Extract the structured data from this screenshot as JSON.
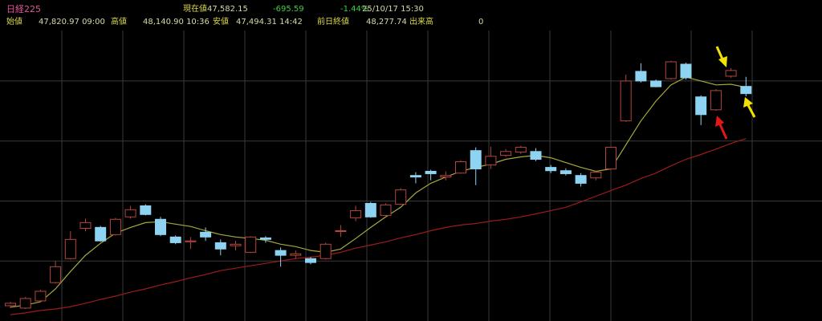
{
  "header": {
    "symbol": "日経225",
    "current_label": "現在値",
    "current": "47,582.15",
    "change": "-695.59",
    "change_pct": "-1.44%",
    "datetime": "25/10/17 15:30",
    "open_label": "始値",
    "open": "47,820.97 09:00",
    "high_label": "高値",
    "high": "48,140.90 10:36",
    "low_label": "安値",
    "low": "47,494.31 14:42",
    "prev_label": "前日終値",
    "prev": "48,277.74",
    "volume_label": "出来高",
    "volume": "0"
  },
  "chart_data": {
    "type": "candlestick",
    "open": [
      40510,
      40430,
      40670,
      41280,
      42080,
      43090,
      43120,
      42880,
      43470,
      43840,
      43390,
      42800,
      42640,
      42960,
      42610,
      42510,
      42290,
      42770,
      42350,
      42190,
      42080,
      42080,
      42990,
      43440,
      43920,
      43520,
      43890,
      44850,
      44990,
      44800,
      44930,
      45680,
      45200,
      45520,
      45630,
      45650,
      45120,
      45010,
      44850,
      44770,
      45070,
      46670,
      48320,
      48000,
      48080,
      48560,
      47470,
      47040,
      48160,
      47820
    ],
    "high": [
      40640,
      40800,
      41040,
      42000,
      42990,
      43410,
      43170,
      43440,
      43840,
      43890,
      43470,
      42850,
      42800,
      43120,
      42720,
      42670,
      42830,
      42830,
      42450,
      42350,
      42130,
      42610,
      43200,
      43840,
      43970,
      43920,
      44430,
      44960,
      45040,
      44990,
      45360,
      45790,
      45810,
      45730,
      45840,
      45760,
      45200,
      45090,
      44930,
      45010,
      45810,
      48210,
      48590,
      48050,
      48670,
      48610,
      47520,
      47730,
      48430,
      48140
    ],
    "low": [
      40430,
      40400,
      40620,
      41250,
      42050,
      42990,
      42640,
      42850,
      43410,
      43520,
      42830,
      42560,
      42400,
      42670,
      42190,
      42350,
      42270,
      42610,
      41810,
      42080,
      41890,
      42050,
      42800,
      43330,
      43440,
      43500,
      43870,
      44590,
      44690,
      44690,
      44910,
      44530,
      45070,
      45470,
      45570,
      45330,
      44930,
      44850,
      44480,
      44690,
      45040,
      46640,
      47950,
      47790,
      48050,
      48050,
      46530,
      47010,
      48110,
      47490
    ],
    "close": [
      40590,
      40750,
      40990,
      41810,
      42720,
      43280,
      42670,
      43390,
      43710,
      43550,
      42880,
      42610,
      42670,
      42800,
      42400,
      42560,
      42800,
      42720,
      42190,
      42240,
      41950,
      42560,
      43010,
      43680,
      43470,
      43870,
      44370,
      44800,
      44910,
      44850,
      45310,
      45070,
      45490,
      45650,
      45790,
      45390,
      45010,
      44910,
      44590,
      44960,
      45790,
      48000,
      48000,
      47810,
      48640,
      48110,
      46880,
      47680,
      48350,
      47580
    ],
    "up_color": "#b5453f",
    "down_color": "#8fd3f2",
    "lines": [
      {
        "color": "#a7a83a",
        "values": [
          40460,
          40530,
          40640,
          41070,
          41650,
          42190,
          42590,
          42930,
          43120,
          43280,
          43310,
          43230,
          43150,
          43010,
          42880,
          42800,
          42750,
          42690,
          42560,
          42480,
          42350,
          42290,
          42400,
          42750,
          43120,
          43470,
          43790,
          44270,
          44590,
          44800,
          44990,
          45120,
          45230,
          45390,
          45470,
          45520,
          45440,
          45280,
          45120,
          44990,
          45070,
          45870,
          46670,
          47330,
          47870,
          48130,
          48000,
          47870,
          47890,
          47790
        ]
      },
      {
        "color": "#9b1c1c",
        "values": [
          40210,
          40270,
          40350,
          40400,
          40480,
          40590,
          40720,
          40830,
          40960,
          41070,
          41200,
          41310,
          41440,
          41550,
          41680,
          41760,
          41840,
          41920,
          42000,
          42080,
          42130,
          42190,
          42290,
          42430,
          42530,
          42640,
          42770,
          42880,
          43010,
          43120,
          43200,
          43250,
          43330,
          43390,
          43470,
          43570,
          43680,
          43790,
          43970,
          44160,
          44350,
          44530,
          44750,
          44930,
          45170,
          45390,
          45550,
          45730,
          45920,
          46080
        ]
      }
    ],
    "ylim": [
      40000,
      50700
    ],
    "ygrid": [
      42000,
      44000,
      46000,
      48000
    ],
    "grid": true
  }
}
